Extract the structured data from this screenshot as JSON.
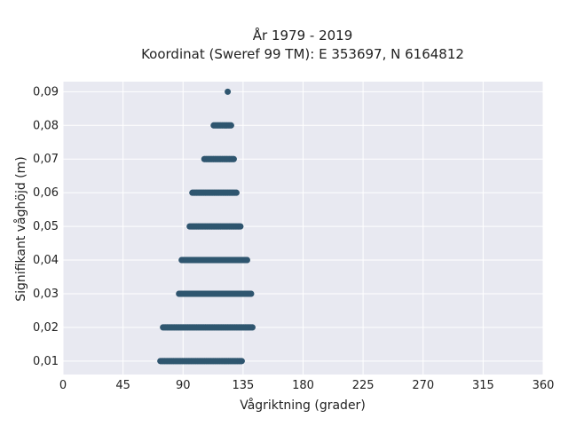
{
  "chart_data": {
    "type": "scatter",
    "title": "År 1979 - 2019",
    "subtitle": "Koordinat (Sweref 99 TM): E 353697, N 6164812",
    "xlabel": "Vågriktning (grader)",
    "ylabel": "Signifikant våghöjd (m)",
    "xlim": [
      0,
      360
    ],
    "ylim": [
      0.006,
      0.093
    ],
    "xticks": [
      0,
      45,
      90,
      135,
      180,
      225,
      270,
      315,
      360
    ],
    "xtick_labels": [
      "0",
      "45",
      "90",
      "135",
      "180",
      "225",
      "270",
      "315",
      "360"
    ],
    "yticks": [
      0.01,
      0.02,
      0.03,
      0.04,
      0.05,
      0.06,
      0.07,
      0.08,
      0.09
    ],
    "ytick_labels": [
      "0,01",
      "0,02",
      "0,03",
      "0,04",
      "0,05",
      "0,06",
      "0,07",
      "0,08",
      "0,09"
    ],
    "grid": true,
    "background": "#e8e9f1",
    "point_color": "#2f566f",
    "bands": [
      {
        "y": 0.01,
        "x_min": 73,
        "x_max": 134
      },
      {
        "y": 0.02,
        "x_min": 75,
        "x_max": 142
      },
      {
        "y": 0.03,
        "x_min": 87,
        "x_max": 141
      },
      {
        "y": 0.04,
        "x_min": 89,
        "x_max": 138
      },
      {
        "y": 0.05,
        "x_min": 95,
        "x_max": 133
      },
      {
        "y": 0.06,
        "x_min": 97,
        "x_max": 130
      },
      {
        "y": 0.07,
        "x_min": 106,
        "x_max": 128
      },
      {
        "y": 0.08,
        "x_min": 113,
        "x_max": 126
      },
      {
        "y": 0.09,
        "x_min": 123,
        "x_max": 124
      }
    ]
  }
}
